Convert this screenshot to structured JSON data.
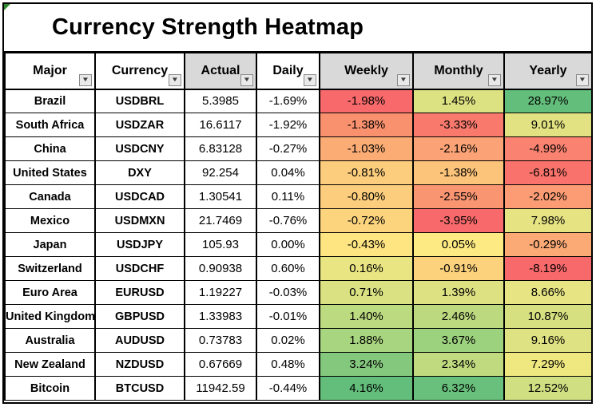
{
  "title": "Currency Strength Heatmap",
  "colors": {
    "header_shaded": "#D9D9D9",
    "header_plain": "#FFFFFF",
    "border": "#000000",
    "scale_min_red": "#F8696B",
    "scale_mid_yellow": "#FFEB84",
    "scale_max_green": "#63BE7B",
    "error_indicator_green": "#2E8B2E",
    "comment_indicator_red": "#CC0000"
  },
  "table": {
    "columns": [
      {
        "label": "Major",
        "shaded": false
      },
      {
        "label": "Currency",
        "shaded": false
      },
      {
        "label": "Actual",
        "shaded": true
      },
      {
        "label": "Daily",
        "shaded": false
      },
      {
        "label": "Weekly",
        "shaded": true
      },
      {
        "label": "Monthly",
        "shaded": true
      },
      {
        "label": "Yearly",
        "shaded": true
      }
    ],
    "rows": [
      {
        "major": "Brazil",
        "currency": "USDBRL",
        "actual": "5.3985",
        "daily": "-1.69%",
        "weekly": "-1.98%",
        "weekly_bg": "#F8696B",
        "monthly": "1.45%",
        "monthly_bg": "#DCE182",
        "yearly": "28.97%",
        "yearly_bg": "#63BE7B"
      },
      {
        "major": "South Africa",
        "currency": "USDZAR",
        "actual": "16.6117",
        "daily": "-1.92%",
        "weekly": "-1.38%",
        "weekly_bg": "#F9916F",
        "monthly": "-3.33%",
        "monthly_bg": "#F97A6D",
        "yearly": "9.01%",
        "yearly_bg": "#E2E282"
      },
      {
        "major": "China",
        "currency": "USDCNY",
        "actual": "6.83128",
        "daily": "-0.27%",
        "weekly": "-1.03%",
        "weekly_bg": "#FBAC75",
        "monthly": "-2.16%",
        "monthly_bg": "#FBA376",
        "yearly": "-4.99%",
        "yearly_bg": "#F98370"
      },
      {
        "major": "United States",
        "currency": "DXY",
        "actual": "92.254",
        "daily": "0.04%",
        "weekly": "-0.81%",
        "weekly_bg": "#FCCD7C",
        "monthly": "-1.38%",
        "monthly_bg": "#FCC37A",
        "yearly": "-6.81%",
        "yearly_bg": "#F9736C"
      },
      {
        "major": "Canada",
        "currency": "USDCAD",
        "actual": "1.30541",
        "daily": "0.11%",
        "weekly": "-0.80%",
        "weekly_bg": "#FCCD7C",
        "monthly": "-2.55%",
        "monthly_bg": "#FA9572",
        "yearly": "-2.02%",
        "yearly_bg": "#FB9C74"
      },
      {
        "major": "Mexico",
        "currency": "USDMXN",
        "actual": "21.7469",
        "daily": "-0.76%",
        "weekly": "-0.72%",
        "weekly_bg": "#FDD47E",
        "monthly": "-3.95%",
        "monthly_bg": "#F8696B",
        "yearly": "7.98%",
        "yearly_bg": "#E6E383"
      },
      {
        "major": "Japan",
        "currency": "USDJPY",
        "actual": "105.93",
        "daily": "0.00%",
        "weekly": "-0.43%",
        "weekly_bg": "#FEE582",
        "monthly": "0.05%",
        "monthly_bg": "#FEEA83",
        "yearly": "-0.29%",
        "yearly_bg": "#FBAA76"
      },
      {
        "major": "Switzerland",
        "currency": "USDCHF",
        "actual": "0.90938",
        "daily": "0.60%",
        "weekly": "0.16%",
        "weekly_bg": "#E9E583",
        "monthly": "-0.91%",
        "monthly_bg": "#FDD27D",
        "yearly": "-8.19%",
        "yearly_bg": "#F8696B"
      },
      {
        "major": "Euro Area",
        "currency": "EURUSD",
        "actual": "1.19227",
        "daily": "-0.03%",
        "weekly": "0.71%",
        "weekly_bg": "#D9E182",
        "monthly": "1.39%",
        "monthly_bg": "#DDE182",
        "yearly": "8.66%",
        "yearly_bg": "#E7E583"
      },
      {
        "major": "United Kingdom",
        "currency": "GBPUSD",
        "actual": "1.33983",
        "daily": "-0.01%",
        "weekly": "1.40%",
        "weekly_bg": "#BCDA80",
        "monthly": "2.46%",
        "monthly_bg": "#BCD980",
        "yearly": "10.87%",
        "yearly_bg": "#D7E081"
      },
      {
        "major": "Australia",
        "currency": "AUDUSD",
        "actual": "0.73783",
        "daily": "0.02%",
        "weekly": "1.88%",
        "weekly_bg": "#A8D57F",
        "monthly": "3.67%",
        "monthly_bg": "#9CD17E",
        "yearly": "9.16%",
        "yearly_bg": "#DFE282"
      },
      {
        "major": "New Zealand",
        "currency": "NZDUSD",
        "actual": "0.67669",
        "daily": "0.48%",
        "weekly": "3.24%",
        "weekly_bg": "#84C87D",
        "monthly": "2.34%",
        "monthly_bg": "#C0DA80",
        "yearly": "7.29%",
        "yearly_bg": "#EFE77F"
      },
      {
        "major": "Bitcoin",
        "currency": "BTCUSD",
        "actual": "11942.59",
        "daily": "-0.44%",
        "weekly": "4.16%",
        "weekly_bg": "#63BE7B",
        "monthly": "6.32%",
        "monthly_bg": "#68C07C",
        "yearly": "12.52%",
        "yearly_bg": "#CFDF81"
      }
    ]
  },
  "chart_data": {
    "type": "heatmap",
    "title": "Currency Strength Heatmap",
    "row_labels": [
      "Brazil",
      "South Africa",
      "China",
      "United States",
      "Canada",
      "Mexico",
      "Japan",
      "Switzerland",
      "Euro Area",
      "United Kingdom",
      "Australia",
      "New Zealand",
      "Bitcoin"
    ],
    "row_currencies": [
      "USDBRL",
      "USDZAR",
      "USDCNY",
      "DXY",
      "USDCAD",
      "USDMXN",
      "USDJPY",
      "USDCHF",
      "EURUSD",
      "GBPUSD",
      "AUDUSD",
      "NZDUSD",
      "BTCUSD"
    ],
    "columns": [
      "Actual",
      "Daily",
      "Weekly",
      "Monthly",
      "Yearly"
    ],
    "actual": [
      5.3985,
      16.6117,
      6.83128,
      92.254,
      1.30541,
      21.7469,
      105.93,
      0.90938,
      1.19227,
      1.33983,
      0.73783,
      0.67669,
      11942.59
    ],
    "daily_pct": [
      -1.69,
      -1.92,
      -0.27,
      0.04,
      0.11,
      -0.76,
      0.0,
      0.6,
      -0.03,
      -0.01,
      0.02,
      0.48,
      -0.44
    ],
    "weekly_pct": [
      -1.98,
      -1.38,
      -1.03,
      -0.81,
      -0.8,
      -0.72,
      -0.43,
      0.16,
      0.71,
      1.4,
      1.88,
      3.24,
      4.16
    ],
    "monthly_pct": [
      1.45,
      -3.33,
      -2.16,
      -1.38,
      -2.55,
      -3.95,
      0.05,
      -0.91,
      1.39,
      2.46,
      3.67,
      2.34,
      6.32
    ],
    "yearly_pct": [
      28.97,
      9.01,
      -4.99,
      -6.81,
      -2.02,
      7.98,
      -0.29,
      -8.19,
      8.66,
      10.87,
      9.16,
      7.29,
      12.52
    ],
    "color_scale": {
      "min": "#F8696B",
      "mid": "#FFEB84",
      "max": "#63BE7B",
      "applied_per_column": true,
      "colored_columns": [
        "Weekly",
        "Monthly",
        "Yearly"
      ]
    },
    "legend_position": "none",
    "grid": true
  }
}
